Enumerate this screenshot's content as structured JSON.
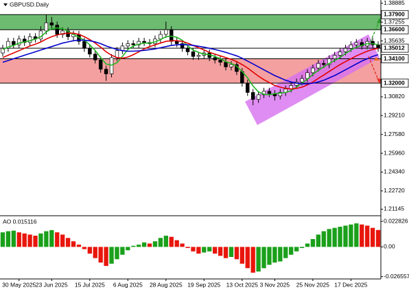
{
  "header": {
    "symbol": "GBPUSD.Daily"
  },
  "chart_data": [
    {
      "type": "candlestick",
      "categories": [
        null,
        null,
        null,
        "30 May 2025",
        null,
        null,
        null,
        null,
        null,
        "23 Jun 2025",
        null,
        null,
        null,
        null,
        null,
        null,
        "15 Jul 2025",
        null,
        null,
        null,
        null,
        null,
        null,
        "6 Aug 2025",
        null,
        null,
        null,
        null,
        null,
        null,
        "28 Aug 2025",
        null,
        null,
        null,
        null,
        null,
        null,
        "19 Sep 2025",
        null,
        null,
        null,
        null,
        null,
        null,
        "13 Oct 2025",
        null,
        null,
        null,
        null,
        null,
        "3 Nov 2025",
        null,
        null,
        null,
        null,
        null,
        null,
        "25 Nov 2025",
        null,
        null,
        null,
        null,
        null,
        null,
        "17 Dec 2025",
        null,
        null,
        null,
        null,
        null
      ],
      "open": [
        1.346,
        1.35,
        1.356,
        1.353,
        1.358,
        1.355,
        1.36,
        1.358,
        1.365,
        1.372,
        1.37,
        1.362,
        1.365,
        1.36,
        1.362,
        1.356,
        1.35,
        1.345,
        1.34,
        1.332,
        1.328,
        1.342,
        1.348,
        1.352,
        1.354,
        1.353,
        1.356,
        1.355,
        1.354,
        1.358,
        1.362,
        1.366,
        1.356,
        1.354,
        1.35,
        1.347,
        1.343,
        1.344,
        1.346,
        1.342,
        1.34,
        1.338,
        1.334,
        1.336,
        1.33,
        1.32,
        1.312,
        1.306,
        1.31,
        1.313,
        1.311,
        1.309,
        1.312,
        1.315,
        1.318,
        1.321,
        1.324,
        1.329,
        1.333,
        1.337,
        1.336,
        1.341,
        1.344,
        1.347,
        1.35,
        1.353,
        1.355,
        1.352,
        1.356,
        1.353
      ],
      "high": [
        1.353,
        1.359,
        1.359,
        1.361,
        1.361,
        1.363,
        1.363,
        1.369,
        1.379,
        1.377,
        1.373,
        1.368,
        1.368,
        1.365,
        1.365,
        1.359,
        1.353,
        1.348,
        1.343,
        1.335,
        1.345,
        1.351,
        1.355,
        1.357,
        1.357,
        1.359,
        1.359,
        1.358,
        1.361,
        1.365,
        1.373,
        1.369,
        1.359,
        1.357,
        1.353,
        1.35,
        1.347,
        1.349,
        1.349,
        1.345,
        1.343,
        1.341,
        1.339,
        1.339,
        1.333,
        1.323,
        1.315,
        1.313,
        1.316,
        1.316,
        1.314,
        1.315,
        1.318,
        1.321,
        1.324,
        1.327,
        1.332,
        1.336,
        1.34,
        1.34,
        1.344,
        1.347,
        1.35,
        1.353,
        1.356,
        1.358,
        1.358,
        1.359,
        1.359,
        1.356
      ],
      "low": [
        1.343,
        1.347,
        1.35,
        1.35,
        1.352,
        1.352,
        1.355,
        1.355,
        1.362,
        1.367,
        1.359,
        1.359,
        1.357,
        1.357,
        1.353,
        1.347,
        1.342,
        1.337,
        1.329,
        1.322,
        1.325,
        1.339,
        1.345,
        1.349,
        1.35,
        1.35,
        1.352,
        1.351,
        1.351,
        1.355,
        1.359,
        1.353,
        1.351,
        1.347,
        1.344,
        1.34,
        1.34,
        1.341,
        1.339,
        1.337,
        1.335,
        1.331,
        1.331,
        1.327,
        1.317,
        1.309,
        1.301,
        1.303,
        1.307,
        1.308,
        1.305,
        1.306,
        1.309,
        1.312,
        1.315,
        1.318,
        1.321,
        1.326,
        1.33,
        1.333,
        1.333,
        1.338,
        1.341,
        1.344,
        1.347,
        1.35,
        1.349,
        1.349,
        1.35,
        1.347
      ],
      "close": [
        1.35,
        1.356,
        1.353,
        1.358,
        1.355,
        1.36,
        1.358,
        1.365,
        1.372,
        1.37,
        1.362,
        1.365,
        1.36,
        1.362,
        1.356,
        1.35,
        1.345,
        1.34,
        1.332,
        1.328,
        1.342,
        1.348,
        1.352,
        1.354,
        1.353,
        1.356,
        1.355,
        1.354,
        1.358,
        1.362,
        1.366,
        1.356,
        1.354,
        1.35,
        1.347,
        1.343,
        1.344,
        1.346,
        1.342,
        1.34,
        1.338,
        1.334,
        1.336,
        1.33,
        1.32,
        1.312,
        1.306,
        1.31,
        1.313,
        1.311,
        1.309,
        1.312,
        1.315,
        1.318,
        1.321,
        1.324,
        1.329,
        1.333,
        1.337,
        1.336,
        1.341,
        1.344,
        1.347,
        1.35,
        1.353,
        1.355,
        1.352,
        1.356,
        1.353,
        1.35012
      ],
      "candle_color": "#000000",
      "bull_fill": "#ffffff",
      "bear_fill": "#000000",
      "series": [
        {
          "color": "#22b422",
          "values": [
            1.349,
            1.351,
            1.3525,
            1.3545,
            1.3555,
            1.3565,
            1.358,
            1.36,
            1.364,
            1.367,
            1.3675,
            1.367,
            1.3645,
            1.362,
            1.3595,
            1.357,
            1.353,
            1.348,
            1.342,
            1.3365,
            1.3355,
            1.3375,
            1.343,
            1.349,
            1.352,
            1.3535,
            1.3545,
            1.3545,
            1.3555,
            1.3575,
            1.36,
            1.3605,
            1.3595,
            1.357,
            1.352,
            1.3485,
            1.3465,
            1.345,
            1.3445,
            1.343,
            1.341,
            1.3385,
            1.337,
            1.3345,
            1.33,
            1.3245,
            1.3175,
            1.3125,
            1.3105,
            1.31,
            1.311,
            1.3115,
            1.312,
            1.3135,
            1.3165,
            1.32,
            1.3235,
            1.3275,
            1.331,
            1.334,
            1.337,
            1.3395,
            1.342,
            1.3455,
            1.3485,
            1.351,
            1.3525,
            1.354,
            1.354,
            1.353
          ]
        },
        {
          "color": "#e00000",
          "values": [
            1.342,
            1.344,
            1.346,
            1.348,
            1.35,
            1.352,
            1.3535,
            1.3555,
            1.358,
            1.36,
            1.3615,
            1.3625,
            1.363,
            1.363,
            1.362,
            1.36,
            1.3575,
            1.3545,
            1.351,
            1.347,
            1.344,
            1.342,
            1.3415,
            1.3425,
            1.3445,
            1.347,
            1.3495,
            1.3515,
            1.353,
            1.3545,
            1.356,
            1.3565,
            1.3565,
            1.356,
            1.3545,
            1.3525,
            1.3505,
            1.3485,
            1.3465,
            1.345,
            1.3435,
            1.342,
            1.3405,
            1.3385,
            1.336,
            1.333,
            1.3295,
            1.326,
            1.323,
            1.3205,
            1.318,
            1.3165,
            1.3155,
            1.315,
            1.3155,
            1.3165,
            1.3185,
            1.321,
            1.324,
            1.327,
            1.33,
            1.333,
            1.336,
            1.3385,
            1.341,
            1.3435,
            1.3455,
            1.3475,
            1.349,
            1.35
          ]
        },
        {
          "color": "#0000cc",
          "values": [
            1.338,
            1.3395,
            1.341,
            1.3425,
            1.344,
            1.3455,
            1.347,
            1.3485,
            1.35,
            1.3515,
            1.353,
            1.3545,
            1.3555,
            1.3565,
            1.357,
            1.357,
            1.3565,
            1.3555,
            1.354,
            1.352,
            1.3505,
            1.349,
            1.348,
            1.3475,
            1.3475,
            1.3478,
            1.3482,
            1.3488,
            1.3495,
            1.3505,
            1.3515,
            1.3525,
            1.353,
            1.3532,
            1.353,
            1.3525,
            1.3518,
            1.351,
            1.35,
            1.349,
            1.3478,
            1.3465,
            1.345,
            1.3435,
            1.3415,
            1.339,
            1.3365,
            1.334,
            1.3315,
            1.329,
            1.3265,
            1.3245,
            1.3225,
            1.321,
            1.32,
            1.3195,
            1.3195,
            1.32,
            1.321,
            1.3225,
            1.3245,
            1.3265,
            1.329,
            1.3315,
            1.334,
            1.3365,
            1.339,
            1.341,
            1.343,
            1.3445
          ]
        }
      ],
      "ylim": [
        1.2064,
        1.3916
      ],
      "yticks": [
        1.38885,
        1.37255,
        1.35635,
        {
          "value": 1.3082,
          "label": "1.30820"
        },
        {
          "value": 1.2921,
          "label": "1.29210"
        },
        {
          "value": 1.2758,
          "label": "1.27580"
        },
        {
          "value": 1.2596,
          "label": "1.25960"
        },
        {
          "value": 1.2434,
          "label": "1.24340"
        },
        {
          "value": 1.2272,
          "label": "1.22720"
        },
        1.21145
      ],
      "levels": [
        {
          "value": 1.379,
          "label": "1.37900"
        },
        {
          "value": 1.366,
          "label": "1.36600"
        },
        {
          "value": 1.35012,
          "label": "1.35012"
        },
        {
          "value": 1.341,
          "label": "1.34100"
        },
        {
          "value": 1.32,
          "label": "1.32000"
        }
      ],
      "zones": [
        {
          "from": 1.366,
          "to": 1.379,
          "color": "#6dbb70"
        },
        {
          "from": 1.32,
          "to": 1.341,
          "color": "#f4a0a0"
        }
      ]
    },
    {
      "type": "bar",
      "title": "AO 0.015116",
      "values": [
        0.013,
        0.014,
        0.0145,
        0.013,
        0.012,
        0.011,
        0.01,
        0.012,
        0.014,
        0.015,
        0.013,
        0.011,
        0.008,
        0.005,
        0.002,
        -0.002,
        -0.006,
        -0.01,
        -0.014,
        -0.017,
        -0.015,
        -0.011,
        -0.007,
        -0.003,
        0.001,
        0.002,
        0.004,
        0.003,
        0.005,
        0.008,
        0.01,
        0.009,
        0.006,
        0.003,
        -0.001,
        -0.004,
        -0.006,
        -0.005,
        -0.004,
        -0.006,
        -0.008,
        -0.01,
        -0.009,
        -0.011,
        -0.015,
        -0.019,
        -0.023,
        -0.022,
        -0.019,
        -0.016,
        -0.014,
        -0.013,
        -0.01,
        -0.007,
        -0.004,
        -0.001,
        0.003,
        0.007,
        0.011,
        0.014,
        0.016,
        0.017,
        0.018,
        0.019,
        0.02,
        0.021,
        0.02,
        0.019,
        0.017,
        0.015116
      ],
      "up_color": "#1aa01a",
      "down_color": "#e8160c",
      "ylim": [
        -0.028,
        0.0266
      ],
      "yticks": [
        0.022826,
        {
          "value": 0,
          "label": "0.00"
        },
        -0.026557
      ]
    }
  ]
}
